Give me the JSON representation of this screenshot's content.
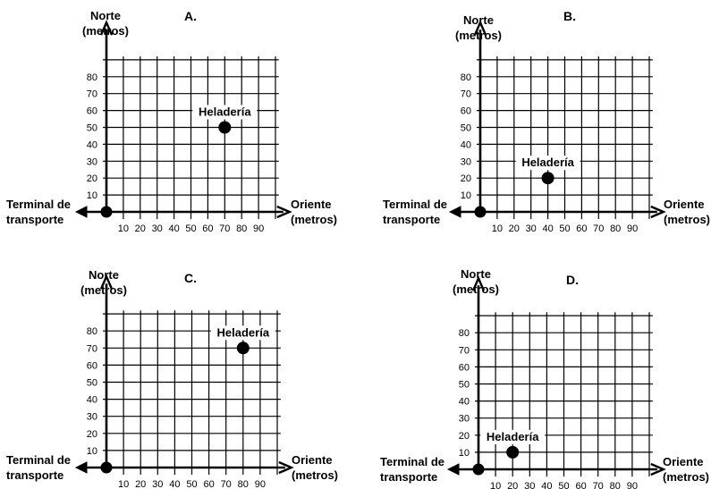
{
  "axes": {
    "north_label": [
      "Norte",
      "(metros)"
    ],
    "east_label": [
      "Oriente",
      "(metros)"
    ],
    "origin_label": [
      "Terminal de",
      "transporte"
    ],
    "ticks": [
      10,
      20,
      30,
      40,
      50,
      60,
      70,
      80,
      90
    ],
    "y_ticks": [
      10,
      20,
      30,
      40,
      50,
      60,
      70,
      80
    ]
  },
  "graphs": [
    {
      "letter": "A.",
      "point_label": "Heladería",
      "point": {
        "x": 70,
        "y": 50
      }
    },
    {
      "letter": "B.",
      "point_label": "Heladería",
      "point": {
        "x": 40,
        "y": 20
      }
    },
    {
      "letter": "C.",
      "point_label": "Heladería",
      "point": {
        "x": 80,
        "y": 70
      }
    },
    {
      "letter": "D.",
      "point_label": "Heladería",
      "point": {
        "x": 20,
        "y": 10
      }
    }
  ]
}
